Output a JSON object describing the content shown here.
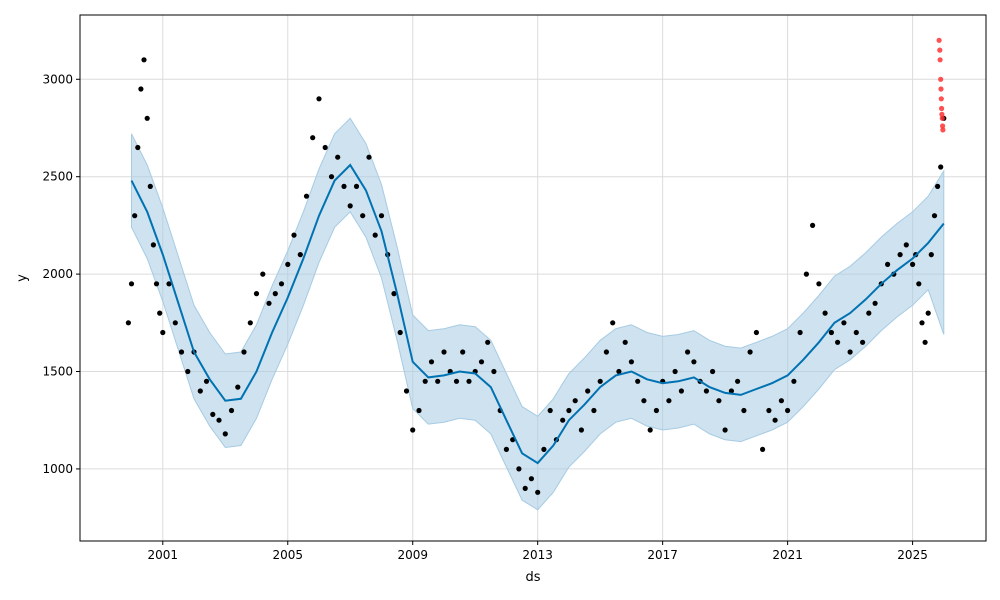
{
  "chart_data": {
    "type": "line",
    "title": "",
    "xlabel": "ds",
    "ylabel": "y",
    "xlim": [
      1998.35,
      2027.35
    ],
    "ylim": [
      630,
      3330
    ],
    "x_ticks": [
      {
        "value": 2001,
        "label": "2001"
      },
      {
        "value": 2005,
        "label": "2005"
      },
      {
        "value": 2009,
        "label": "2009"
      },
      {
        "value": 2013,
        "label": "2013"
      },
      {
        "value": 2017,
        "label": "2017"
      },
      {
        "value": 2021,
        "label": "2021"
      },
      {
        "value": 2025,
        "label": "2025"
      }
    ],
    "y_ticks": [
      {
        "value": 1000,
        "label": "1000"
      },
      {
        "value": 1500,
        "label": "1500"
      },
      {
        "value": 2000,
        "label": "2000"
      },
      {
        "value": 2500,
        "label": "2500"
      },
      {
        "value": 3000,
        "label": "3000"
      }
    ],
    "grid": true,
    "colors": {
      "observed": "#000000",
      "forecast": "#0072B2",
      "interval": "#A6CBE3",
      "anomaly": "#FF3333",
      "grid": "#DCDCDC"
    },
    "series": [
      {
        "kind": "forecast",
        "x": [
          2000.0,
          2000.5,
          2001.0,
          2001.5,
          2002.0,
          2002.5,
          2003.0,
          2003.5,
          2004.0,
          2004.5,
          2005.0,
          2005.5,
          2006.0,
          2006.5,
          2007.0,
          2007.5,
          2008.0,
          2008.5,
          2009.0,
          2009.5,
          2010.0,
          2010.5,
          2011.0,
          2011.5,
          2012.0,
          2012.5,
          2013.0,
          2013.5,
          2014.0,
          2014.5,
          2015.0,
          2015.5,
          2016.0,
          2016.5,
          2017.0,
          2017.5,
          2018.0,
          2018.5,
          2019.0,
          2019.5,
          2020.0,
          2020.5,
          2021.0,
          2021.5,
          2022.0,
          2022.5,
          2023.0,
          2023.5,
          2024.0,
          2024.5,
          2025.0,
          2025.5,
          2026.0
        ],
        "y": [
          2480,
          2320,
          2100,
          1850,
          1600,
          1460,
          1350,
          1360,
          1500,
          1700,
          1880,
          2080,
          2300,
          2480,
          2560,
          2430,
          2220,
          1900,
          1550,
          1470,
          1480,
          1500,
          1490,
          1420,
          1250,
          1080,
          1030,
          1120,
          1250,
          1330,
          1420,
          1480,
          1500,
          1460,
          1440,
          1450,
          1470,
          1420,
          1390,
          1380,
          1410,
          1440,
          1480,
          1560,
          1650,
          1750,
          1800,
          1870,
          1950,
          2020,
          2080,
          2160,
          2260
        ]
      },
      {
        "kind": "interval_upper",
        "x": [
          2000.0,
          2000.5,
          2001.0,
          2001.5,
          2002.0,
          2002.5,
          2003.0,
          2003.5,
          2004.0,
          2004.5,
          2005.0,
          2005.5,
          2006.0,
          2006.5,
          2007.0,
          2007.5,
          2008.0,
          2008.5,
          2009.0,
          2009.5,
          2010.0,
          2010.5,
          2011.0,
          2011.5,
          2012.0,
          2012.5,
          2013.0,
          2013.5,
          2014.0,
          2014.5,
          2015.0,
          2015.5,
          2016.0,
          2016.5,
          2017.0,
          2017.5,
          2018.0,
          2018.5,
          2019.0,
          2019.5,
          2020.0,
          2020.5,
          2021.0,
          2021.5,
          2022.0,
          2022.5,
          2023.0,
          2023.5,
          2024.0,
          2024.5,
          2025.0,
          2025.5,
          2026.0
        ],
        "y": [
          2720,
          2560,
          2340,
          2090,
          1840,
          1700,
          1590,
          1600,
          1740,
          1940,
          2120,
          2320,
          2540,
          2720,
          2800,
          2670,
          2460,
          2140,
          1790,
          1710,
          1720,
          1740,
          1730,
          1660,
          1490,
          1320,
          1270,
          1360,
          1490,
          1570,
          1660,
          1720,
          1740,
          1700,
          1680,
          1690,
          1710,
          1660,
          1630,
          1620,
          1650,
          1680,
          1720,
          1800,
          1890,
          1990,
          2040,
          2110,
          2190,
          2260,
          2320,
          2400,
          2530
        ]
      },
      {
        "kind": "interval_lower",
        "x": [
          2000.0,
          2000.5,
          2001.0,
          2001.5,
          2002.0,
          2002.5,
          2003.0,
          2003.5,
          2004.0,
          2004.5,
          2005.0,
          2005.5,
          2006.0,
          2006.5,
          2007.0,
          2007.5,
          2008.0,
          2008.5,
          2009.0,
          2009.5,
          2010.0,
          2010.5,
          2011.0,
          2011.5,
          2012.0,
          2012.5,
          2013.0,
          2013.5,
          2014.0,
          2014.5,
          2015.0,
          2015.5,
          2016.0,
          2016.5,
          2017.0,
          2017.5,
          2018.0,
          2018.5,
          2019.0,
          2019.5,
          2020.0,
          2020.5,
          2021.0,
          2021.5,
          2022.0,
          2022.5,
          2023.0,
          2023.5,
          2024.0,
          2024.5,
          2025.0,
          2025.5,
          2026.0
        ],
        "y": [
          2240,
          2080,
          1860,
          1610,
          1360,
          1220,
          1110,
          1120,
          1260,
          1460,
          1640,
          1840,
          2060,
          2240,
          2320,
          2190,
          1980,
          1660,
          1310,
          1230,
          1240,
          1260,
          1250,
          1180,
          1010,
          840,
          790,
          880,
          1010,
          1090,
          1180,
          1240,
          1260,
          1220,
          1200,
          1210,
          1230,
          1180,
          1150,
          1140,
          1170,
          1200,
          1240,
          1320,
          1410,
          1510,
          1560,
          1630,
          1710,
          1780,
          1840,
          1920,
          1690
        ]
      },
      {
        "kind": "observed",
        "x": [
          1999.9,
          2000.0,
          2000.1,
          2000.2,
          2000.3,
          2000.4,
          2000.5,
          2000.6,
          2000.7,
          2000.8,
          2000.9,
          2001.0,
          2001.2,
          2001.4,
          2001.6,
          2001.8,
          2002.0,
          2002.2,
          2002.4,
          2002.6,
          2002.8,
          2003.0,
          2003.2,
          2003.4,
          2003.6,
          2003.8,
          2004.0,
          2004.2,
          2004.4,
          2004.6,
          2004.8,
          2005.0,
          2005.2,
          2005.4,
          2005.6,
          2005.8,
          2006.0,
          2006.2,
          2006.4,
          2006.6,
          2006.8,
          2007.0,
          2007.2,
          2007.4,
          2007.6,
          2007.8,
          2008.0,
          2008.2,
          2008.4,
          2008.6,
          2008.8,
          2009.0,
          2009.2,
          2009.4,
          2009.6,
          2009.8,
          2010.0,
          2010.2,
          2010.4,
          2010.6,
          2010.8,
          2011.0,
          2011.2,
          2011.4,
          2011.6,
          2011.8,
          2012.0,
          2012.2,
          2012.4,
          2012.6,
          2012.8,
          2013.0,
          2013.2,
          2013.4,
          2013.6,
          2013.8,
          2014.0,
          2014.2,
          2014.4,
          2014.6,
          2014.8,
          2015.0,
          2015.2,
          2015.4,
          2015.6,
          2015.8,
          2016.0,
          2016.2,
          2016.4,
          2016.6,
          2016.8,
          2017.0,
          2017.2,
          2017.4,
          2017.6,
          2017.8,
          2018.0,
          2018.2,
          2018.4,
          2018.6,
          2018.8,
          2019.0,
          2019.2,
          2019.4,
          2019.6,
          2019.8,
          2020.0,
          2020.2,
          2020.4,
          2020.6,
          2020.8,
          2021.0,
          2021.2,
          2021.4,
          2021.6,
          2021.8,
          2022.0,
          2022.2,
          2022.4,
          2022.6,
          2022.8,
          2023.0,
          2023.2,
          2023.4,
          2023.6,
          2023.8,
          2024.0,
          2024.2,
          2024.4,
          2024.6,
          2024.8,
          2025.0,
          2025.1,
          2025.2,
          2025.3,
          2025.4,
          2025.5,
          2025.6,
          2025.7,
          2025.8,
          2025.9,
          2026.0
        ],
        "y": [
          1750,
          1950,
          2300,
          2650,
          2950,
          3100,
          2800,
          2450,
          2150,
          1950,
          1800,
          1700,
          1950,
          1750,
          1600,
          1500,
          1600,
          1400,
          1450,
          1280,
          1250,
          1180,
          1300,
          1420,
          1600,
          1750,
          1900,
          2000,
          1850,
          1900,
          1950,
          2050,
          2200,
          2100,
          2400,
          2700,
          2900,
          2650,
          2500,
          2600,
          2450,
          2350,
          2450,
          2300,
          2600,
          2200,
          2300,
          2100,
          1900,
          1700,
          1400,
          1200,
          1300,
          1450,
          1550,
          1450,
          1600,
          1500,
          1450,
          1600,
          1450,
          1500,
          1550,
          1650,
          1500,
          1300,
          1100,
          1150,
          1000,
          900,
          950,
          880,
          1100,
          1300,
          1150,
          1250,
          1300,
          1350,
          1200,
          1400,
          1300,
          1450,
          1600,
          1750,
          1500,
          1650,
          1550,
          1450,
          1350,
          1200,
          1300,
          1450,
          1350,
          1500,
          1400,
          1600,
          1550,
          1450,
          1400,
          1500,
          1350,
          1200,
          1400,
          1450,
          1300,
          1600,
          1700,
          1100,
          1300,
          1250,
          1350,
          1300,
          1450,
          1700,
          2000,
          2250,
          1950,
          1800,
          1700,
          1650,
          1750,
          1600,
          1700,
          1650,
          1800,
          1850,
          1950,
          2050,
          2000,
          2100,
          2150,
          2050,
          2100,
          1950,
          1750,
          1650,
          1800,
          2100,
          2300,
          2450,
          2550,
          2800
        ]
      },
      {
        "kind": "anomaly",
        "x": [
          2025.85,
          2025.87,
          2025.88,
          2025.9,
          2025.91,
          2025.92,
          2025.93,
          2025.94,
          2025.95,
          2025.96,
          2025.97
        ],
        "y": [
          3200,
          3150,
          3100,
          3000,
          2950,
          2900,
          2850,
          2820,
          2800,
          2760,
          2740
        ]
      }
    ]
  }
}
